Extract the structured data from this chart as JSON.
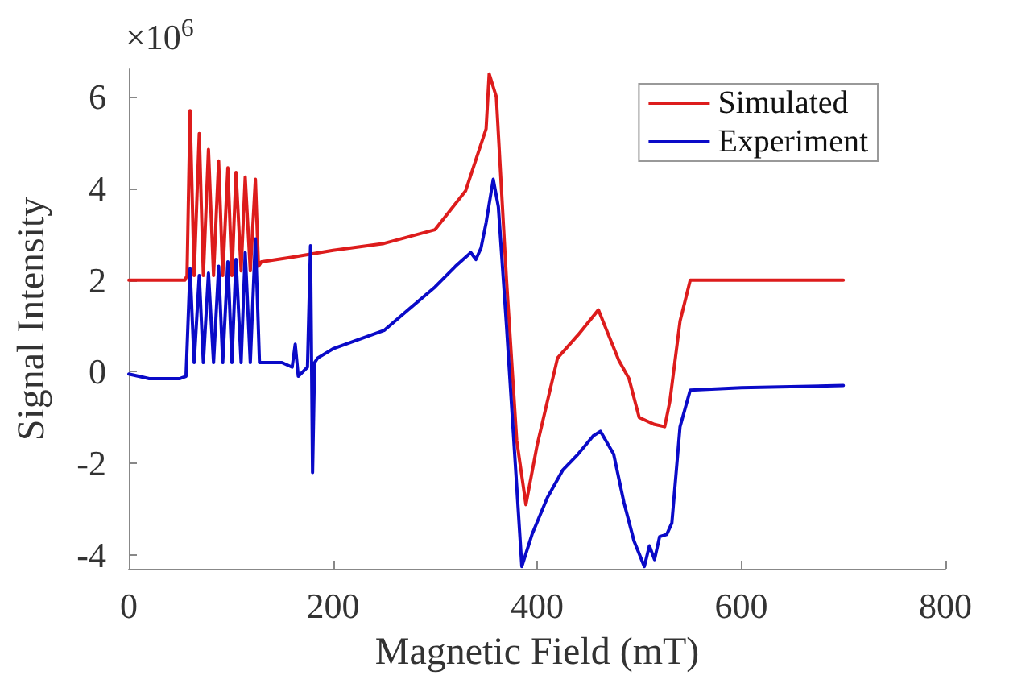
{
  "chart_data": {
    "type": "line",
    "xlabel": "Magnetic Field (mT)",
    "ylabel": "Signal Intensity",
    "annotations": [
      "×10$^{6}$"
    ],
    "xlim": [
      0,
      800
    ],
    "xticks": [
      0,
      200,
      400,
      600,
      800
    ],
    "ylim": [
      -4.3,
      6.6
    ],
    "yticks": [
      -4,
      -2,
      0,
      2,
      4,
      6
    ],
    "grid": false,
    "legend": "top right",
    "marker": "none",
    "line_style": "solid",
    "series": [
      {
        "name": "Simulated",
        "color": "#dd1c1c",
        "x": [
          0,
          55,
          57,
          60,
          64,
          69,
          73,
          78,
          83,
          88,
          92,
          97,
          101,
          105,
          110,
          114,
          119,
          124,
          127,
          130,
          160,
          200,
          250,
          300,
          330,
          350,
          353,
          360,
          370,
          380,
          389,
          400,
          420,
          440,
          460,
          470,
          480,
          490,
          500,
          515,
          525,
          530,
          540,
          550,
          600,
          700
        ],
        "values": [
          2,
          2,
          2.1,
          5.7,
          2.1,
          5.2,
          2.1,
          4.85,
          2.1,
          4.6,
          2.1,
          4.45,
          2.1,
          4.35,
          2.2,
          4.25,
          2.2,
          4.2,
          2.3,
          2.4,
          2.5,
          2.65,
          2.8,
          3.1,
          3.95,
          5.3,
          6.5,
          6.0,
          2.0,
          -1.5,
          -2.9,
          -1.6,
          0.3,
          0.8,
          1.35,
          0.8,
          0.25,
          -0.15,
          -1.0,
          -1.15,
          -1.2,
          -0.65,
          1.1,
          2.0,
          2.0,
          2.0
        ]
      },
      {
        "name": "Experiment",
        "color": "#0a0ac8",
        "x": [
          0,
          20,
          50,
          56,
          60,
          64,
          69,
          73,
          78,
          83,
          88,
          92,
          97,
          101,
          105,
          110,
          114,
          119,
          124,
          128,
          150,
          160,
          163,
          166,
          175,
          178,
          180,
          182,
          185,
          200,
          250,
          300,
          320,
          335,
          340,
          345,
          350,
          357,
          362,
          370,
          385,
          395,
          410,
          425,
          440,
          455,
          462,
          475,
          485,
          495,
          505,
          510,
          515,
          520,
          527,
          532,
          540,
          550,
          600,
          700
        ],
        "values": [
          -0.05,
          -0.15,
          -0.15,
          -0.1,
          2.25,
          0.2,
          2.1,
          0.2,
          2.15,
          0.2,
          2.3,
          0.2,
          2.4,
          0.2,
          2.45,
          0.2,
          2.6,
          0.2,
          2.9,
          0.2,
          0.2,
          0.1,
          0.6,
          -0.1,
          0.1,
          2.75,
          -2.2,
          0.2,
          0.3,
          0.5,
          0.9,
          1.85,
          2.3,
          2.6,
          2.45,
          2.7,
          3.25,
          4.2,
          3.6,
          1.0,
          -4.25,
          -3.55,
          -2.75,
          -2.15,
          -1.8,
          -1.4,
          -1.3,
          -1.8,
          -2.85,
          -3.7,
          -4.25,
          -3.8,
          -4.1,
          -3.6,
          -3.55,
          -3.3,
          -1.2,
          -0.4,
          -0.35,
          -0.3
        ]
      }
    ]
  }
}
